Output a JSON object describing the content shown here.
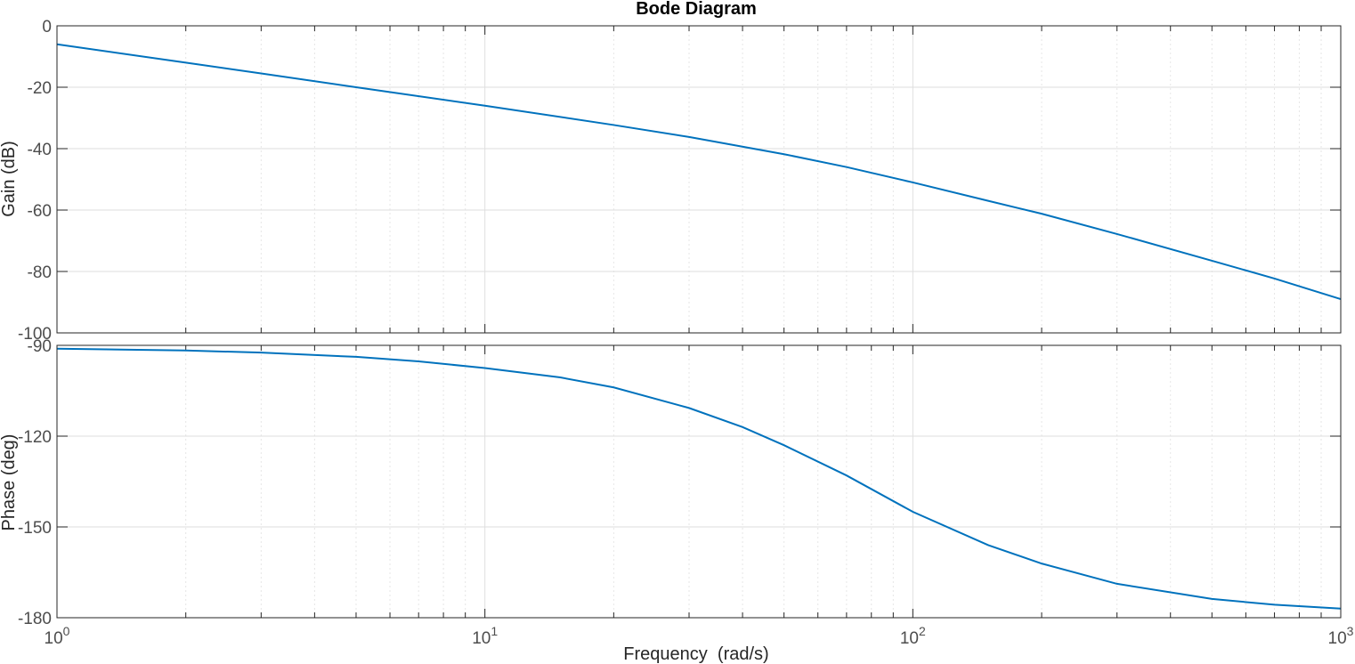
{
  "chart_data": {
    "type": "line",
    "title": "Bode Diagram",
    "xlabel": "Frequency  (rad/s)",
    "xscale": "log",
    "xlim": [
      1,
      1000
    ],
    "x_ticks": [
      {
        "value": 1,
        "base": "10",
        "exp": "0"
      },
      {
        "value": 10,
        "base": "10",
        "exp": "1"
      },
      {
        "value": 100,
        "base": "10",
        "exp": "2"
      },
      {
        "value": 1000,
        "base": "10",
        "exp": "3"
      }
    ],
    "grid": true,
    "line_color": "#0072BD",
    "subplots": [
      {
        "name": "magnitude",
        "ylabel": "Gain (dB)",
        "ylim": [
          -100,
          0
        ],
        "yticks": [
          0,
          -20,
          -40,
          -60,
          -80,
          -100
        ],
        "ytick_labels": [
          "0",
          "-20",
          "-40",
          "-60",
          "-80",
          "-100"
        ],
        "x": [
          1,
          2,
          3,
          5,
          10,
          20,
          30,
          50,
          70,
          100,
          150,
          200,
          300,
          500,
          700,
          1000
        ],
        "y": [
          -6,
          -12,
          -15.5,
          -20,
          -26,
          -32.3,
          -36.2,
          -41.8,
          -46,
          -51,
          -57,
          -61.2,
          -67.8,
          -76.5,
          -82.3,
          -89
        ]
      },
      {
        "name": "phase",
        "ylabel": "Phase (deg)",
        "ylim": [
          -180,
          -90
        ],
        "yticks": [
          -90,
          -120,
          -150,
          -180
        ],
        "ytick_labels": [
          "-90",
          "-120",
          "-150",
          "-180"
        ],
        "x": [
          1,
          2,
          3,
          5,
          7,
          10,
          15,
          20,
          30,
          40,
          50,
          70,
          100,
          150,
          200,
          300,
          500,
          700,
          1000
        ],
        "y": [
          -91.1,
          -91.7,
          -92.4,
          -93.8,
          -95.3,
          -97.5,
          -100.6,
          -103.9,
          -110.7,
          -117,
          -123,
          -133,
          -145,
          -156,
          -162.1,
          -168.8,
          -173.8,
          -175.7,
          -177
        ]
      }
    ]
  }
}
